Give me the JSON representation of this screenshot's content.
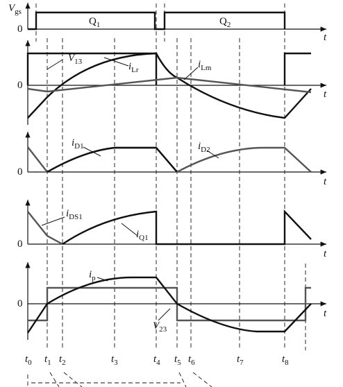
{
  "vgs_panel": {
    "label": {
      "main": "V",
      "sub": "gs"
    },
    "zero": "0",
    "axis_label": "t",
    "pulses": [
      {
        "main": "Q",
        "sub": "1"
      },
      {
        "main": "Q",
        "sub": "2"
      }
    ]
  },
  "current_panels": [
    {
      "zero": "0",
      "axis_label": "t",
      "labels": [
        {
          "main": "V",
          "sub": "13"
        },
        {
          "main": "i",
          "sub": "Lr"
        },
        {
          "main": "i",
          "sub": "Lm"
        }
      ]
    },
    {
      "zero": "0",
      "axis_label": "t",
      "labels": [
        {
          "main": "i",
          "sub": "D1"
        },
        {
          "main": "i",
          "sub": "D2"
        }
      ]
    },
    {
      "zero": "0",
      "axis_label": "t",
      "labels": [
        {
          "main": "i",
          "sub": "DS1"
        },
        {
          "main": "i",
          "sub": "Q1"
        }
      ]
    },
    {
      "zero": "0",
      "axis_label": "t",
      "labels": [
        {
          "main": "i",
          "sub": "p"
        },
        {
          "main": "V",
          "sub": "23"
        }
      ]
    }
  ],
  "time_marks": [
    {
      "main": "t",
      "sub": "0"
    },
    {
      "main": "t",
      "sub": "1"
    },
    {
      "main": "t",
      "sub": "2"
    },
    {
      "main": "t",
      "sub": "3"
    },
    {
      "main": "t",
      "sub": "4"
    },
    {
      "main": "t",
      "sub": "5"
    },
    {
      "main": "t",
      "sub": "6"
    },
    {
      "main": "t",
      "sub": "7"
    },
    {
      "main": "t",
      "sub": "8"
    }
  ]
}
